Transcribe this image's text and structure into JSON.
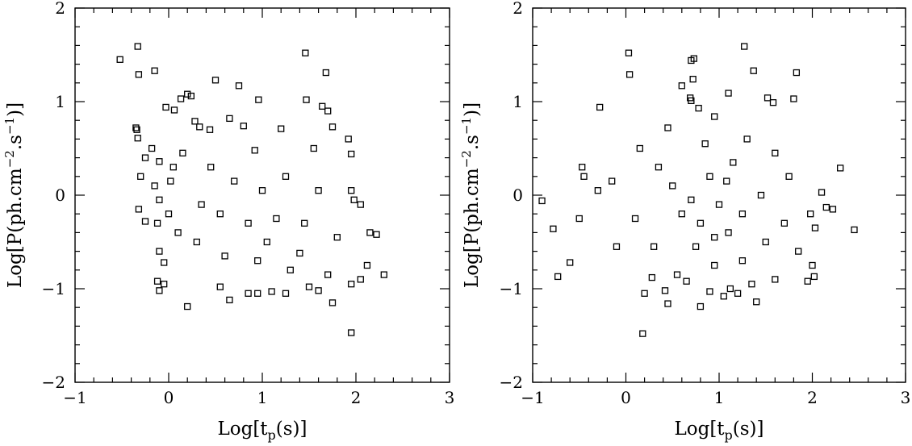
{
  "chart_data": [
    {
      "type": "scatter",
      "panel": "left",
      "xlabel": "Log[t_p(s)]",
      "xlabel_main": "Log[t",
      "xlabel_sub": "p",
      "xlabel_tail": "(s)]",
      "ylabel": "Log[P(ph.cm^-2.s^-1)]",
      "ylabel_main": "Log[P(ph.cm",
      "ylabel_sup1": "−2",
      "ylabel_mid": ".s",
      "ylabel_sup2": "−1",
      "ylabel_tail": ")]",
      "xlim": [
        -1,
        3
      ],
      "ylim": [
        -2,
        2
      ],
      "xticks": [
        "−1",
        "0",
        "1",
        "2",
        "3"
      ],
      "yticks": [
        "−2",
        "−1",
        "0",
        "1",
        "2"
      ],
      "marker": "open-square",
      "grid": false,
      "points": [
        [
          -0.52,
          1.45
        ],
        [
          -0.33,
          1.59
        ],
        [
          -0.32,
          1.29
        ],
        [
          -0.15,
          1.33
        ],
        [
          1.46,
          1.52
        ],
        [
          1.68,
          1.31
        ],
        [
          0.5,
          1.23
        ],
        [
          0.75,
          1.17
        ],
        [
          0.2,
          1.08
        ],
        [
          0.24,
          1.06
        ],
        [
          0.13,
          1.03
        ],
        [
          -0.03,
          0.94
        ],
        [
          0.06,
          0.91
        ],
        [
          0.96,
          1.02
        ],
        [
          1.47,
          1.02
        ],
        [
          1.64,
          0.95
        ],
        [
          1.7,
          0.9
        ],
        [
          -0.35,
          0.72
        ],
        [
          -0.34,
          0.7
        ],
        [
          -0.33,
          0.61
        ],
        [
          0.65,
          0.82
        ],
        [
          0.28,
          0.79
        ],
        [
          0.33,
          0.73
        ],
        [
          0.8,
          0.74
        ],
        [
          1.75,
          0.73
        ],
        [
          0.44,
          0.7
        ],
        [
          1.2,
          0.71
        ],
        [
          -0.25,
          0.4
        ],
        [
          -0.18,
          0.5
        ],
        [
          -0.1,
          0.36
        ],
        [
          0.05,
          0.3
        ],
        [
          0.15,
          0.45
        ],
        [
          1.92,
          0.6
        ],
        [
          1.95,
          0.44
        ],
        [
          -0.3,
          0.2
        ],
        [
          -0.15,
          0.1
        ],
        [
          0.02,
          0.15
        ],
        [
          1.95,
          0.05
        ],
        [
          1.98,
          -0.05
        ],
        [
          2.05,
          -0.1
        ],
        [
          2.15,
          -0.4
        ],
        [
          2.22,
          -0.42
        ],
        [
          2.3,
          -0.85
        ],
        [
          2.05,
          -0.9
        ],
        [
          1.95,
          -0.95
        ],
        [
          2.12,
          -0.75
        ],
        [
          -0.32,
          -0.15
        ],
        [
          -0.25,
          -0.28
        ],
        [
          -0.12,
          -0.3
        ],
        [
          -0.1,
          -0.05
        ],
        [
          0.0,
          -0.2
        ],
        [
          -0.1,
          -0.6
        ],
        [
          -0.05,
          -0.72
        ],
        [
          -0.12,
          -0.92
        ],
        [
          -0.05,
          -0.95
        ],
        [
          -0.1,
          -1.02
        ],
        [
          0.2,
          -1.19
        ],
        [
          0.55,
          -0.98
        ],
        [
          0.65,
          -1.12
        ],
        [
          0.85,
          -1.05
        ],
        [
          0.95,
          -1.05
        ],
        [
          1.1,
          -1.03
        ],
        [
          1.25,
          -1.05
        ],
        [
          1.5,
          -0.98
        ],
        [
          1.6,
          -1.02
        ],
        [
          1.75,
          -1.15
        ],
        [
          1.95,
          -1.47
        ],
        [
          0.6,
          -0.65
        ],
        [
          0.95,
          -0.7
        ],
        [
          1.3,
          -0.8
        ],
        [
          1.7,
          -0.85
        ],
        [
          0.3,
          -0.5
        ],
        [
          1.05,
          -0.5
        ],
        [
          1.4,
          -0.62
        ],
        [
          0.45,
          0.3
        ],
        [
          0.92,
          0.48
        ],
        [
          1.55,
          0.5
        ],
        [
          0.7,
          0.15
        ],
        [
          1.25,
          0.2
        ],
        [
          0.85,
          -0.3
        ],
        [
          0.55,
          -0.2
        ],
        [
          1.15,
          -0.25
        ],
        [
          1.45,
          -0.3
        ],
        [
          1.8,
          -0.45
        ],
        [
          0.35,
          -0.1
        ],
        [
          0.1,
          -0.4
        ],
        [
          1.6,
          0.05
        ],
        [
          1.0,
          0.05
        ]
      ]
    },
    {
      "type": "scatter",
      "panel": "right",
      "xlabel": "Log[t_p(s)]",
      "xlabel_main": "Log[t",
      "xlabel_sub": "p",
      "xlabel_tail": "(s)]",
      "ylabel": "Log[P(ph.cm^-2.s^-1)]",
      "ylabel_main": "Log[P(ph.cm",
      "ylabel_sup1": "−2",
      "ylabel_mid": ".s",
      "ylabel_sup2": "−1",
      "ylabel_tail": ")]",
      "xlim": [
        -1,
        3
      ],
      "ylim": [
        -2,
        2
      ],
      "xticks": [
        "−1",
        "0",
        "1",
        "2",
        "3"
      ],
      "yticks": [
        "−2",
        "−1",
        "0",
        "1",
        "2"
      ],
      "marker": "open-square",
      "grid": false,
      "points": [
        [
          0.03,
          1.52
        ],
        [
          0.04,
          1.29
        ],
        [
          0.7,
          1.44
        ],
        [
          0.73,
          1.46
        ],
        [
          0.72,
          1.24
        ],
        [
          0.6,
          1.17
        ],
        [
          1.27,
          1.59
        ],
        [
          1.37,
          1.33
        ],
        [
          1.1,
          1.09
        ],
        [
          1.52,
          1.04
        ],
        [
          1.58,
          0.99
        ],
        [
          1.8,
          1.03
        ],
        [
          1.83,
          1.31
        ],
        [
          -0.28,
          0.94
        ],
        [
          0.69,
          1.04
        ],
        [
          0.7,
          1.01
        ],
        [
          0.78,
          0.93
        ],
        [
          0.95,
          0.84
        ],
        [
          -0.47,
          0.3
        ],
        [
          -0.45,
          0.2
        ],
        [
          -0.3,
          0.05
        ],
        [
          -0.9,
          -0.06
        ],
        [
          -0.78,
          -0.36
        ],
        [
          -0.73,
          -0.87
        ],
        [
          -0.6,
          -0.72
        ],
        [
          -0.5,
          -0.25
        ],
        [
          2.3,
          0.29
        ],
        [
          2.45,
          -0.37
        ],
        [
          2.15,
          -0.13
        ],
        [
          2.22,
          -0.15
        ],
        [
          2.1,
          0.03
        ],
        [
          1.98,
          -0.2
        ],
        [
          2.03,
          -0.35
        ],
        [
          2.0,
          -0.75
        ],
        [
          2.02,
          -0.87
        ],
        [
          1.95,
          -0.92
        ],
        [
          0.18,
          -1.48
        ],
        [
          0.2,
          -1.05
        ],
        [
          0.28,
          -0.88
        ],
        [
          0.42,
          -1.02
        ],
        [
          0.45,
          -1.16
        ],
        [
          0.65,
          -0.92
        ],
        [
          0.8,
          -1.19
        ],
        [
          0.9,
          -1.03
        ],
        [
          1.05,
          -1.08
        ],
        [
          1.12,
          -1.0
        ],
        [
          1.2,
          -1.05
        ],
        [
          1.4,
          -1.14
        ],
        [
          1.35,
          -0.95
        ],
        [
          1.6,
          -0.9
        ],
        [
          0.3,
          -0.55
        ],
        [
          0.1,
          -0.25
        ],
        [
          0.5,
          0.1
        ],
        [
          0.9,
          0.2
        ],
        [
          1.25,
          -0.2
        ],
        [
          1.1,
          -0.4
        ],
        [
          0.75,
          -0.55
        ],
        [
          1.5,
          -0.5
        ],
        [
          1.7,
          -0.3
        ],
        [
          0.95,
          -0.75
        ],
        [
          0.6,
          -0.2
        ],
        [
          0.15,
          0.5
        ],
        [
          1.6,
          0.45
        ],
        [
          1.3,
          0.6
        ],
        [
          0.85,
          0.55
        ],
        [
          0.45,
          0.72
        ],
        [
          1.08,
          0.15
        ],
        [
          0.7,
          -0.05
        ],
        [
          1.45,
          0.0
        ],
        [
          -0.1,
          -0.55
        ],
        [
          -0.15,
          0.15
        ],
        [
          0.35,
          0.3
        ],
        [
          1.85,
          -0.6
        ],
        [
          1.75,
          0.2
        ],
        [
          0.55,
          -0.85
        ],
        [
          1.25,
          -0.7
        ],
        [
          0.95,
          -0.45
        ],
        [
          0.8,
          -0.3
        ],
        [
          1.0,
          -0.1
        ],
        [
          1.15,
          0.35
        ]
      ]
    }
  ]
}
